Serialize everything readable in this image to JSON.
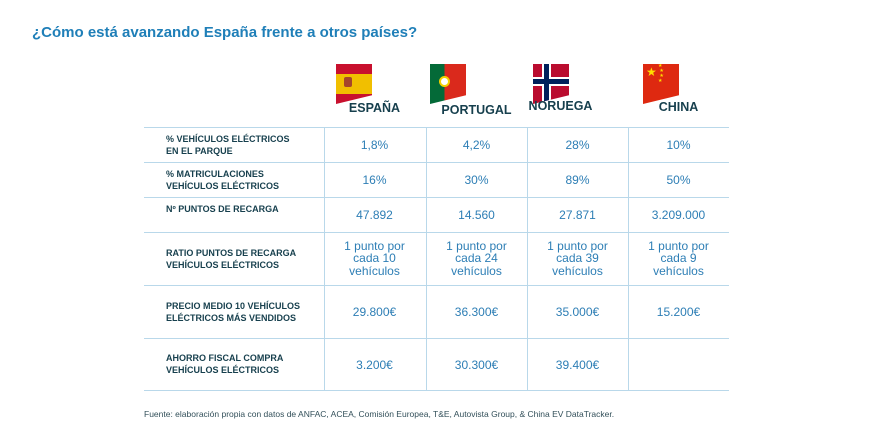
{
  "title": "¿Cómo está avanzando España frente a otros países?",
  "countries": [
    {
      "name": "ESPAÑA",
      "flag": "spain-flag"
    },
    {
      "name": "PORTUGAL",
      "flag": "portugal-flag"
    },
    {
      "name": "NORUEGA",
      "flag": "norway-flag"
    },
    {
      "name": "CHINA",
      "flag": "china-flag"
    }
  ],
  "rows": [
    {
      "label": [
        "% VEHÍCULOS ELÉCTRICOS",
        "EN EL PARQUE"
      ],
      "values": [
        [
          "1,8%"
        ],
        [
          "4,2%"
        ],
        [
          "28%"
        ],
        [
          "10%"
        ]
      ]
    },
    {
      "label": [
        "% MATRICULACIONES",
        "VEHÍCULOS ELÉCTRICOS"
      ],
      "values": [
        [
          "16%"
        ],
        [
          "30%"
        ],
        [
          "89%"
        ],
        [
          "50%"
        ]
      ]
    },
    {
      "label": [
        "Nº PUNTOS DE RECARGA",
        ""
      ],
      "values": [
        [
          "47.892"
        ],
        [
          "14.560"
        ],
        [
          "27.871"
        ],
        [
          "3.209.000"
        ]
      ]
    },
    {
      "label": [
        "RATIO PUNTOS DE RECARGA",
        "VEHÍCULOS ELÉCTRICOS"
      ],
      "values": [
        [
          "1 punto por",
          "cada 10",
          "vehículos"
        ],
        [
          "1 punto por",
          "cada 24",
          "vehículos"
        ],
        [
          "1 punto por",
          "cada 39",
          "vehículos"
        ],
        [
          "1 punto por",
          "cada 9",
          "vehículos"
        ]
      ]
    },
    {
      "label": [
        "PRECIO MEDIO 10 VEHÍCULOS",
        "ELÉCTRICOS MÁS VENDIDOS"
      ],
      "values": [
        [
          "29.800€"
        ],
        [
          "36.300€"
        ],
        [
          "35.000€"
        ],
        [
          "15.200€"
        ]
      ]
    },
    {
      "label": [
        "AHORRO FISCAL COMPRA",
        "VEHÍCULOS ELÉCTRICOS"
      ],
      "values": [
        [
          "3.200€"
        ],
        [
          "30.300€"
        ],
        [
          "39.400€"
        ],
        [
          ""
        ]
      ]
    }
  ],
  "footnote": "Fuente: elaboración propia con datos de ANFAC, ACEA, Comisión Europea, T&E, Autovista Group, & China EV DataTracker."
}
